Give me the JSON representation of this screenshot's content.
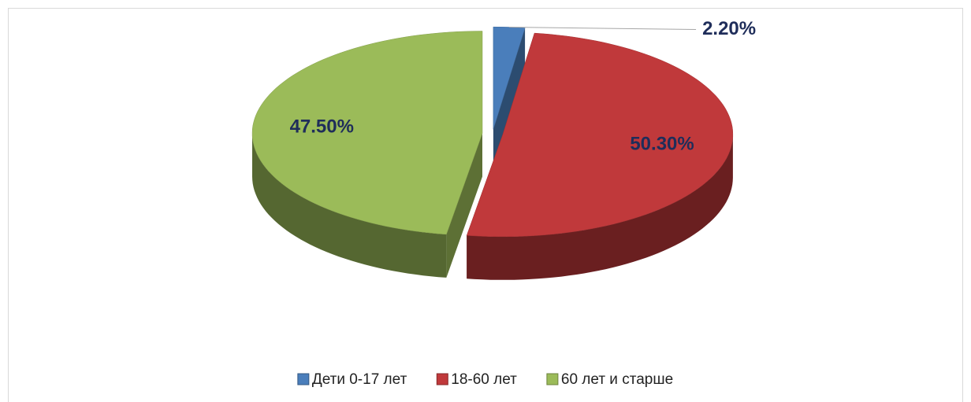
{
  "chart_data": {
    "type": "pie3d",
    "categories": [
      "Дети 0-17 лет",
      "18-60 лет",
      "60 лет и старше"
    ],
    "values": [
      2.2,
      50.3,
      47.5
    ],
    "value_labels": [
      "2.20%",
      "50.30%",
      "47.50%"
    ],
    "colors": [
      "#4a7ebb",
      "#c0393b",
      "#9bbb59"
    ],
    "legend": "bottom"
  }
}
